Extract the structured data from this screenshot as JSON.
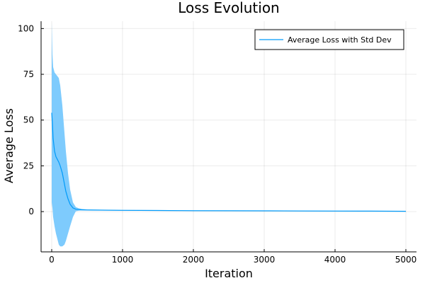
{
  "chart_data": {
    "type": "line",
    "title": "Loss Evolution",
    "xlabel": "Iteration",
    "ylabel": "Average Loss",
    "xlim": [
      -150,
      5150
    ],
    "ylim": [
      -22,
      104
    ],
    "xticks": [
      0,
      1000,
      2000,
      3000,
      4000,
      5000
    ],
    "yticks": [
      0,
      25,
      50,
      75,
      100
    ],
    "grid": true,
    "legend_position": "top-right",
    "series": [
      {
        "name": "Average Loss with Std Dev",
        "color": "#009af9",
        "band_color": "#7ecbfd",
        "x": [
          0,
          10,
          20,
          40,
          60,
          80,
          100,
          120,
          150,
          180,
          200,
          230,
          260,
          300,
          340,
          380,
          420,
          500,
          700,
          1000,
          1500,
          2000,
          2500,
          3000,
          3500,
          4000,
          4500,
          5000
        ],
        "mean": [
          54,
          48,
          40,
          33,
          30,
          28.5,
          27,
          25,
          21,
          15,
          11,
          7,
          4,
          2,
          1.3,
          1.1,
          1,
          0.9,
          0.8,
          0.7,
          0.6,
          0.5,
          0.45,
          0.4,
          0.35,
          0.3,
          0.25,
          0.2
        ],
        "upper": [
          103,
          86,
          79,
          76,
          75,
          74,
          73,
          69,
          58,
          43,
          33,
          21,
          12,
          5,
          2.5,
          1.8,
          1.5,
          1.2,
          1.0,
          0.9,
          0.8,
          0.7,
          0.6,
          0.55,
          0.5,
          0.45,
          0.4,
          0.35
        ],
        "lower": [
          5,
          2,
          -3,
          -8,
          -12,
          -15,
          -18,
          -19,
          -19,
          -18,
          -16,
          -12,
          -8,
          -3,
          0.2,
          0.5,
          0.6,
          0.6,
          0.6,
          0.5,
          0.4,
          0.3,
          0.3,
          0.25,
          0.2,
          0.15,
          0.1,
          0.05
        ]
      }
    ]
  }
}
